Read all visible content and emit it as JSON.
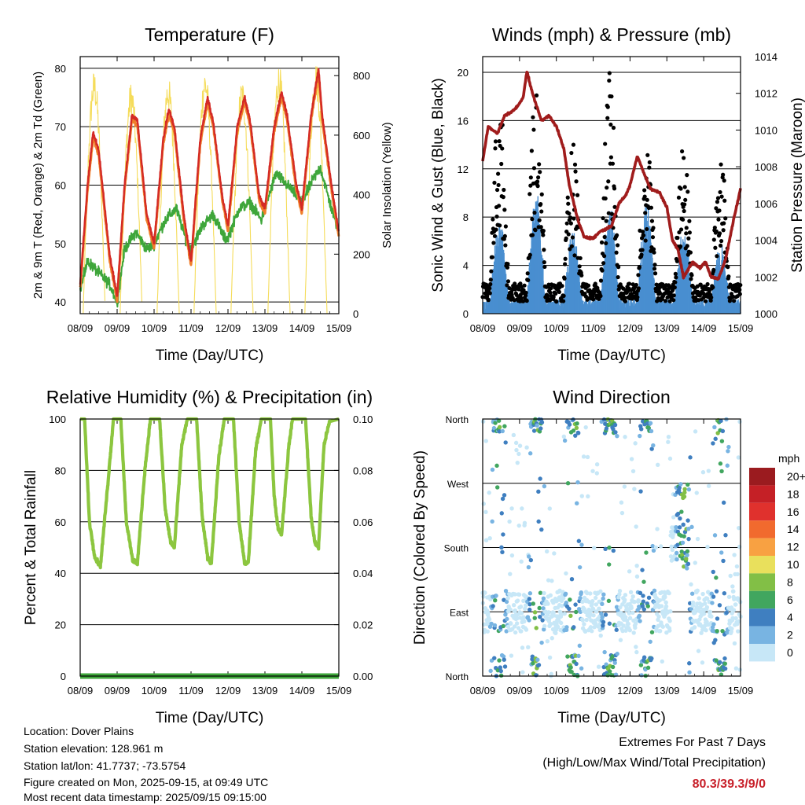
{
  "x_ticks": [
    "08/09",
    "09/09",
    "10/09",
    "11/09",
    "12/09",
    "13/09",
    "14/09",
    "15/09"
  ],
  "x_label": "Time (Day/UTC)",
  "chart_data": [
    {
      "type": "line",
      "title": "Temperature (F)",
      "ylabel": "2m & 9m T (Red, Orange) & 2m Td (Green)",
      "y2label": "Solar Insolation (Yellow)",
      "ylim": [
        38,
        82
      ],
      "y2lim": [
        0,
        864
      ],
      "yticks": [
        40,
        50,
        60,
        70,
        80
      ],
      "y2ticks": [
        0,
        200,
        400,
        600,
        800
      ],
      "grid": true,
      "x_days": [
        0,
        7
      ],
      "series": [
        {
          "name": "2m T",
          "color": "#d42a25",
          "points": [
            [
              0,
              43
            ],
            [
              0.2,
              60
            ],
            [
              0.35,
              69
            ],
            [
              0.5,
              66
            ],
            [
              0.8,
              48
            ],
            [
              1.0,
              41
            ],
            [
              1.2,
              60
            ],
            [
              1.4,
              72
            ],
            [
              1.55,
              71
            ],
            [
              1.8,
              55
            ],
            [
              2.0,
              50
            ],
            [
              2.25,
              68
            ],
            [
              2.4,
              73
            ],
            [
              2.55,
              70
            ],
            [
              2.8,
              55
            ],
            [
              3.0,
              47
            ],
            [
              3.25,
              68
            ],
            [
              3.45,
              75
            ],
            [
              3.6,
              71
            ],
            [
              3.85,
              58
            ],
            [
              4.0,
              53
            ],
            [
              4.25,
              70
            ],
            [
              4.45,
              75
            ],
            [
              4.6,
              71
            ],
            [
              4.85,
              58
            ],
            [
              5.0,
              56
            ],
            [
              5.25,
              70
            ],
            [
              5.45,
              76
            ],
            [
              5.6,
              72
            ],
            [
              5.85,
              60
            ],
            [
              6.0,
              56
            ],
            [
              6.25,
              72
            ],
            [
              6.45,
              80
            ],
            [
              6.55,
              72
            ],
            [
              6.8,
              60
            ],
            [
              7.0,
              52
            ]
          ]
        },
        {
          "name": "2m Td",
          "color": "#3ea63a",
          "points": [
            [
              0,
              42
            ],
            [
              0.2,
              47
            ],
            [
              0.5,
              45
            ],
            [
              0.8,
              43
            ],
            [
              1.0,
              40
            ],
            [
              1.2,
              49
            ],
            [
              1.5,
              52
            ],
            [
              1.8,
              49
            ],
            [
              2.0,
              50
            ],
            [
              2.3,
              54
            ],
            [
              2.6,
              56
            ],
            [
              2.9,
              50
            ],
            [
              3.0,
              49
            ],
            [
              3.3,
              53
            ],
            [
              3.6,
              55
            ],
            [
              3.9,
              51
            ],
            [
              4.0,
              51
            ],
            [
              4.3,
              56
            ],
            [
              4.6,
              57
            ],
            [
              4.9,
              54
            ],
            [
              5.0,
              56
            ],
            [
              5.3,
              62
            ],
            [
              5.6,
              60
            ],
            [
              5.9,
              58
            ],
            [
              6.0,
              57
            ],
            [
              6.3,
              61
            ],
            [
              6.5,
              63
            ],
            [
              6.8,
              56
            ],
            [
              7.0,
              52
            ]
          ]
        },
        {
          "name": "Solar Insolation",
          "color": "#f5dc5a",
          "axis": "right",
          "days": [
            0.38,
            1.38,
            2.38,
            3.38,
            4.38,
            5.38,
            6.38
          ],
          "peak": [
            820,
            780,
            800,
            830,
            790,
            840,
            850
          ]
        }
      ]
    },
    {
      "type": "scatter",
      "title": "Winds (mph) & Pressure (mb)",
      "ylabel": "Sonic Wind & Gust (Blue, Black)",
      "y2label": "Station Pressure (Maroon)",
      "ylim": [
        0,
        21.3
      ],
      "y2lim": [
        1000,
        1014
      ],
      "yticks": [
        0,
        4,
        8,
        12,
        16,
        20
      ],
      "y2ticks": [
        1000,
        1002,
        1004,
        1006,
        1008,
        1010,
        1012,
        1014
      ],
      "grid": true,
      "x_days": [
        0,
        7
      ],
      "series": [
        {
          "name": "Sonic Wind",
          "color": "#4a8fd0",
          "daily_peak": [
            7,
            9,
            6,
            8,
            8,
            6,
            5
          ]
        },
        {
          "name": "Gust",
          "color": "#000000",
          "daily_peak": [
            16,
            17,
            12,
            19,
            13,
            12,
            11
          ]
        },
        {
          "name": "Station Pressure",
          "color": "#a01c1c",
          "axis": "right",
          "points": [
            [
              0,
              1008.3
            ],
            [
              0.15,
              1010.2
            ],
            [
              0.4,
              1009.8
            ],
            [
              0.6,
              1010.8
            ],
            [
              0.8,
              1011.0
            ],
            [
              0.95,
              1011.3
            ],
            [
              1.1,
              1011.8
            ],
            [
              1.2,
              1013.2
            ],
            [
              1.35,
              1012.0
            ],
            [
              1.6,
              1010.5
            ],
            [
              1.8,
              1010.8
            ],
            [
              2.0,
              1010.2
            ],
            [
              2.2,
              1009.0
            ],
            [
              2.35,
              1007.0
            ],
            [
              2.6,
              1005.0
            ],
            [
              2.75,
              1004.2
            ],
            [
              3.0,
              1004.1
            ],
            [
              3.2,
              1004.5
            ],
            [
              3.35,
              1004.6
            ],
            [
              3.5,
              1004.8
            ],
            [
              3.7,
              1006.0
            ],
            [
              3.9,
              1006.5
            ],
            [
              4.0,
              1007.0
            ],
            [
              4.2,
              1008.6
            ],
            [
              4.35,
              1007.8
            ],
            [
              4.55,
              1006.8
            ],
            [
              4.8,
              1006.6
            ],
            [
              5.0,
              1005.8
            ],
            [
              5.15,
              1004.0
            ],
            [
              5.3,
              1003.5
            ],
            [
              5.45,
              1002.0
            ],
            [
              5.7,
              1002.8
            ],
            [
              5.9,
              1002.5
            ],
            [
              6.05,
              1002.8
            ],
            [
              6.2,
              1002.0
            ],
            [
              6.4,
              1001.9
            ],
            [
              6.6,
              1003.0
            ],
            [
              6.8,
              1005.0
            ],
            [
              7.0,
              1006.8
            ]
          ]
        }
      ]
    },
    {
      "type": "line",
      "title": "Relative Humidity (%) & Precipitation (in)",
      "ylabel": "Percent & Total Rainfall",
      "ylim": [
        0,
        100
      ],
      "y2lim": [
        0,
        0.1
      ],
      "yticks": [
        0,
        20,
        40,
        60,
        80,
        100
      ],
      "y2ticks": [
        "0.00",
        "0.02",
        "0.04",
        "0.06",
        "0.08",
        "0.10"
      ],
      "grid": true,
      "x_days": [
        0,
        7
      ],
      "series": [
        {
          "name": "Relative Humidity",
          "color": "#8cc63f",
          "points": [
            [
              0,
              100
            ],
            [
              0.12,
              100
            ],
            [
              0.25,
              60
            ],
            [
              0.4,
              46
            ],
            [
              0.55,
              43
            ],
            [
              0.75,
              75
            ],
            [
              0.9,
              100
            ],
            [
              1.1,
              100
            ],
            [
              1.25,
              60
            ],
            [
              1.42,
              45
            ],
            [
              1.55,
              44
            ],
            [
              1.75,
              80
            ],
            [
              1.9,
              100
            ],
            [
              2.15,
              100
            ],
            [
              2.3,
              65
            ],
            [
              2.45,
              52
            ],
            [
              2.55,
              50
            ],
            [
              2.75,
              90
            ],
            [
              2.9,
              100
            ],
            [
              3.15,
              100
            ],
            [
              3.3,
              62
            ],
            [
              3.45,
              46
            ],
            [
              3.55,
              44
            ],
            [
              3.75,
              85
            ],
            [
              3.9,
              100
            ],
            [
              4.15,
              100
            ],
            [
              4.3,
              60
            ],
            [
              4.45,
              44
            ],
            [
              4.55,
              44
            ],
            [
              4.75,
              88
            ],
            [
              4.9,
              100
            ],
            [
              5.15,
              100
            ],
            [
              5.25,
              70
            ],
            [
              5.35,
              58
            ],
            [
              5.45,
              55
            ],
            [
              5.65,
              90
            ],
            [
              5.75,
              100
            ],
            [
              6.1,
              100
            ],
            [
              6.25,
              62
            ],
            [
              6.35,
              52
            ],
            [
              6.45,
              50
            ],
            [
              6.6,
              90
            ],
            [
              6.75,
              99
            ],
            [
              7.0,
              100
            ]
          ]
        },
        {
          "name": "Total Precipitation",
          "color": "#3ea63a",
          "axis": "right",
          "values": [
            0,
            0
          ]
        }
      ]
    },
    {
      "type": "scatter",
      "title": "Wind Direction",
      "ylabel": "Direction (Colored By Speed)",
      "yticks": [
        "North",
        "East",
        "South",
        "West",
        "North"
      ],
      "ylim": [
        0,
        360
      ],
      "grid": true,
      "x_days": [
        0,
        7
      ],
      "legend": {
        "title": "mph",
        "labels": [
          "20+",
          "18",
          "16",
          "14",
          "12",
          "10",
          "8",
          "6",
          "4",
          "2",
          "0"
        ],
        "colors": [
          "#9b1b1f",
          "#c52026",
          "#e0312d",
          "#f16a2e",
          "#f8a142",
          "#e9e05c",
          "#82bf46",
          "#41a65f",
          "#3f7fc0",
          "#78b4e2",
          "#c7e7f7"
        ],
        "placement": "right"
      }
    }
  ],
  "info": {
    "location": "Location: Dover Plains",
    "elevation": "Station elevation: 128.961 m",
    "latlon": "Station lat/lon: 41.7737; -73.5754",
    "created": "Figure created on Mon, 2025-09-15, at 09:49 UTC",
    "recent": "Most recent data timestamp: 2025/09/15 09:15:00"
  },
  "extremes": {
    "line1": "Extremes For Past 7 Days",
    "line2": "(High/Low/Max Wind/Total Precipitation)",
    "values": "80.3/39.3/9/0"
  }
}
